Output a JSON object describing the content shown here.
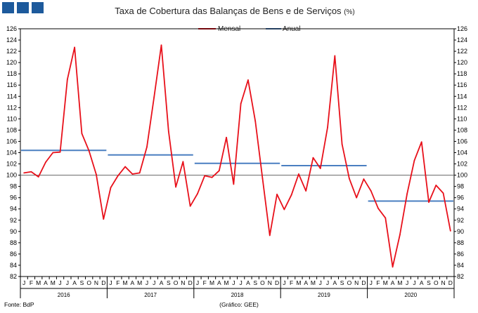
{
  "chart_data": {
    "type": "line",
    "title": "Taxa de Cobertura das Balanças de Bens e de Serviços",
    "title_unit": "(%)",
    "source": "Fonte: BdP",
    "credit": "(Gráfico: GEE)",
    "y_ticks": [
      82,
      84,
      86,
      88,
      90,
      92,
      94,
      96,
      98,
      100,
      102,
      104,
      106,
      108,
      110,
      112,
      114,
      116,
      118,
      120,
      122,
      124,
      126
    ],
    "ylim": [
      82,
      126
    ],
    "y_axis_both_sides": true,
    "reference_line": 100,
    "month_labels": [
      "J",
      "F",
      "M",
      "A",
      "M",
      "J",
      "J",
      "A",
      "S",
      "O",
      "N",
      "D"
    ],
    "years": [
      "2016",
      "2017",
      "2018",
      "2019",
      "2020"
    ],
    "legend_position": "top-center",
    "series": [
      {
        "name": "Mensal",
        "color": "#e8101a",
        "values": [
          100.4,
          100.6,
          99.7,
          102.3,
          104.0,
          104.1,
          117.0,
          122.7,
          107.4,
          104.3,
          100.1,
          92.2,
          97.8,
          99.9,
          101.5,
          100.2,
          100.4,
          105.0,
          113.9,
          123.1,
          107.8,
          97.9,
          102.4,
          94.5,
          96.7,
          99.9,
          99.6,
          100.8,
          106.7,
          98.4,
          112.7,
          116.9,
          109.6,
          99.4,
          89.3,
          96.6,
          93.9,
          96.5,
          100.2,
          97.2,
          103.1,
          101.2,
          108.5,
          121.2,
          105.5,
          99.4,
          96.0,
          99.3,
          97.2,
          94.1,
          92.4,
          83.7,
          89.4,
          96.7,
          102.6,
          105.9,
          95.2,
          98.2,
          96.8,
          90.1
        ]
      },
      {
        "name": "Anual",
        "color": "#4a7fc1",
        "annual_values": [
          104.4,
          103.6,
          102.1,
          101.7,
          95.4
        ]
      }
    ]
  }
}
